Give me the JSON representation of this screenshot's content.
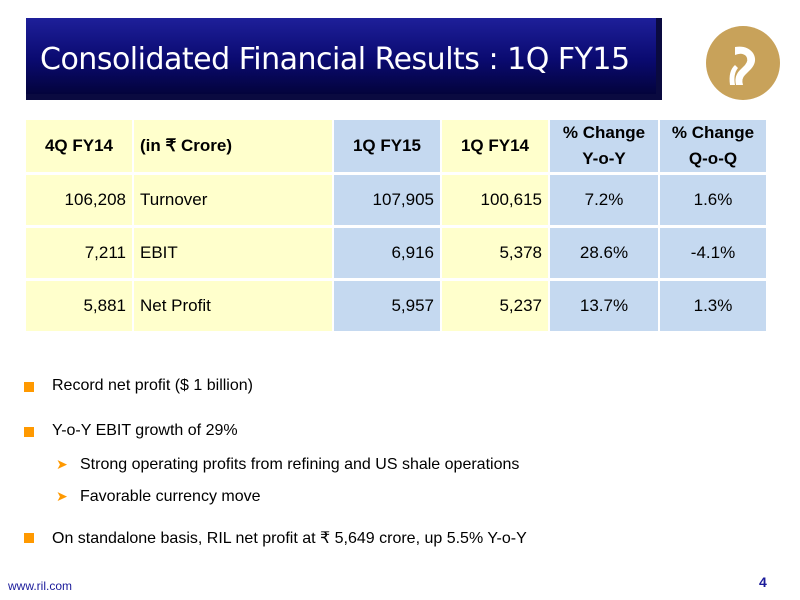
{
  "title": "Consolidated Financial Results : 1Q FY15",
  "logo": {
    "icon": "reliance-logo-icon",
    "color": "#c8a25a"
  },
  "table": {
    "headers": [
      "4Q FY14",
      "(in ₹ Crore)",
      "1Q FY15",
      "1Q FY14",
      [
        "% Change",
        "Y-o-Y"
      ],
      [
        "% Change",
        "Q-o-Q"
      ]
    ],
    "rows": [
      [
        "106,208",
        "Turnover",
        "107,905",
        "100,615",
        "7.2%",
        "1.6%"
      ],
      [
        "7,211",
        "EBIT",
        "6,916",
        "5,378",
        "28.6%",
        "-4.1%"
      ],
      [
        "5,881",
        "Net Profit",
        "5,957",
        "5,237",
        "13.7%",
        "1.3%"
      ]
    ]
  },
  "bullets": [
    "Record net profit ($ 1 billion)",
    "Y-o-Y EBIT growth of 29%",
    "Strong operating profits from refining and US shale operations",
    "Favorable currency move",
    "On standalone basis, RIL net profit at ₹ 5,649 crore, up 5.5% Y-o-Y"
  ],
  "footer": {
    "url": "www.ril.com",
    "page": "4"
  },
  "colors": {
    "title_bg": "#0a0a70",
    "yellow_cell": "#ffffcc",
    "blue_cell": "#c5d9f0",
    "bullet": "#ff9900"
  }
}
